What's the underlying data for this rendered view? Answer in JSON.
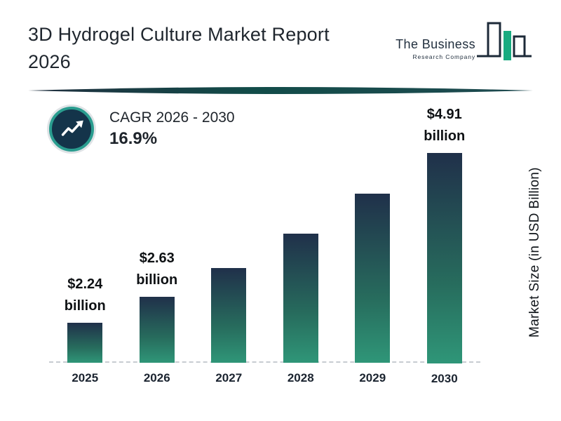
{
  "header": {
    "title_line1": "3D Hydrogel Culture Market Report",
    "title_line2": "2026",
    "logo": {
      "name_top": "The Business",
      "name_bottom": "Research Company"
    }
  },
  "cagr_badge": {
    "label": "CAGR 2026 - 2030",
    "value": "16.9%"
  },
  "chart_data": {
    "type": "bar",
    "title": "3D Hydrogel Culture Market Report 2026",
    "categories": [
      "2025",
      "2026",
      "2027",
      "2028",
      "2029",
      "2030"
    ],
    "values": [
      2.24,
      2.63,
      3.07,
      3.59,
      4.2,
      4.91
    ],
    "value_unit": "USD billion",
    "labeled_bars": [
      {
        "category": "2025",
        "amount": "$2.24",
        "unit": "billion"
      },
      {
        "category": "2026",
        "amount": "$2.63",
        "unit": "billion"
      },
      {
        "category": "2030",
        "amount": "$4.91",
        "unit": "billion"
      }
    ],
    "xlabel": "",
    "ylabel": "Market Size (in USD Billion)",
    "ylim": [
      0,
      5
    ],
    "grid": false,
    "legend": false
  },
  "colors": {
    "bar_gradient_top": "#20304a",
    "bar_gradient_bottom": "#2f9678",
    "accent_teal": "#2a9d8f",
    "divider_dark": "#1f2e3e",
    "divider_teal": "#124c49",
    "logo_green": "#18ab80",
    "text_dark": "#1d242c",
    "baseline_gray": "#c7ccd1"
  }
}
